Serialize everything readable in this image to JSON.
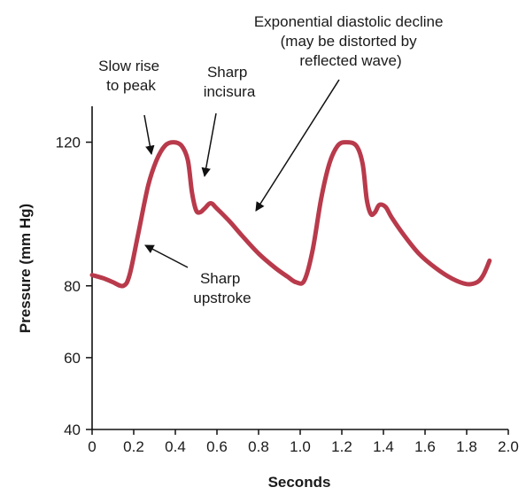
{
  "chart_data": {
    "type": "line",
    "title": "",
    "xlabel": "Seconds",
    "ylabel": "Pressure (mm Hg)",
    "xlim": [
      0,
      2.0
    ],
    "ylim": [
      40,
      130
    ],
    "x_ticks": [
      "0",
      "0.2",
      "0.4",
      "0.6",
      "0.8",
      "1.0",
      "1.2",
      "1.4",
      "1.6",
      "1.8",
      "2.0"
    ],
    "y_ticks": [
      "40",
      "60",
      "80",
      "120"
    ],
    "grid": false,
    "line_color": "#b83a4b",
    "series": [
      {
        "x": [
          0,
          0.06,
          0.1,
          0.15,
          0.18,
          0.22,
          0.27,
          0.31,
          0.35,
          0.39,
          0.43,
          0.46,
          0.48,
          0.5,
          0.52,
          0.54,
          0.57,
          0.6,
          0.66,
          0.72,
          0.8,
          0.88,
          0.94,
          0.98,
          1.02,
          1.06,
          1.1,
          1.14,
          1.18,
          1.22,
          1.27,
          1.3,
          1.32,
          1.34,
          1.36,
          1.38,
          1.41,
          1.44,
          1.5,
          1.57,
          1.65,
          1.73,
          1.8,
          1.85,
          1.88,
          1.91
        ],
        "y": [
          83,
          82,
          81,
          80,
          83,
          94,
          108,
          115,
          119,
          120,
          119,
          115,
          106,
          101,
          100.5,
          101.5,
          103,
          101.5,
          98,
          94,
          89,
          85,
          82.5,
          81,
          81.5,
          90,
          104,
          114,
          119,
          120,
          119,
          114,
          104,
          100,
          100.5,
          102.5,
          102,
          99,
          94,
          89,
          85,
          82,
          80.5,
          81,
          83,
          87
        ]
      }
    ],
    "annotations": [
      {
        "lines": [
          "Slow rise",
          "to peak"
        ]
      },
      {
        "lines": [
          "Sharp",
          "incisura"
        ]
      },
      {
        "lines": [
          "Exponential diastolic decline",
          "(may be distorted by",
          "reflected wave)"
        ]
      },
      {
        "lines": [
          "Sharp",
          "upstroke"
        ]
      }
    ]
  }
}
